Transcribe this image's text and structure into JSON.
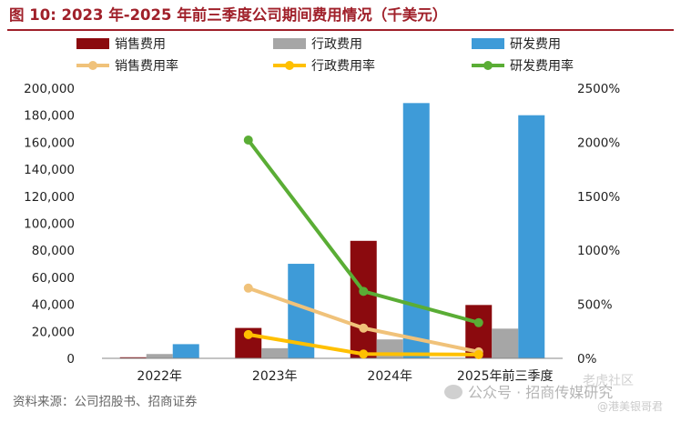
{
  "title": "图 10:  2023 年-2025 年前三季度公司期间费用情况（千美元）",
  "source": "资料来源：公司招股书、招商证券",
  "watermark": {
    "main": "公众号 · 招商传媒研究",
    "top": "老虎社区",
    "bottom": "@港美银哥君"
  },
  "colors": {
    "sales_bar": "#8b0a0e",
    "admin_bar": "#a6a6a6",
    "rd_bar": "#3e9bd8",
    "sales_rate": "#f0c27a",
    "admin_rate": "#ffc000",
    "rd_rate": "#5aad35",
    "title": "#a0202a"
  },
  "chart_data": {
    "type": "bar",
    "categories": [
      "2022年",
      "2023年",
      "2024年",
      "2025年前三季度"
    ],
    "bar_series": [
      {
        "name": "销售费用",
        "values": [
          800,
          22500,
          87000,
          39500
        ]
      },
      {
        "name": "行政费用",
        "values": [
          3200,
          7500,
          14000,
          22000
        ]
      },
      {
        "name": "研发费用",
        "values": [
          10500,
          70000,
          189000,
          180000
        ]
      }
    ],
    "line_series": [
      {
        "name": "销售费用率",
        "values": [
          null,
          650,
          280,
          60
        ]
      },
      {
        "name": "行政费用率",
        "values": [
          null,
          220,
          40,
          35
        ]
      },
      {
        "name": "研发费用率",
        "values": [
          null,
          2020,
          620,
          330
        ]
      }
    ],
    "y_left": {
      "ylim": [
        0,
        200000
      ],
      "ticks": [
        "0",
        "20,000",
        "40,000",
        "60,000",
        "80,000",
        "100,000",
        "120,000",
        "140,000",
        "160,000",
        "180,000",
        "200,000"
      ]
    },
    "y_right": {
      "ylim": [
        0,
        2500
      ],
      "ticks": [
        "0%",
        "500%",
        "1000%",
        "1500%",
        "2000%",
        "2500%"
      ]
    },
    "grid": false,
    "legend_placement": "top"
  }
}
